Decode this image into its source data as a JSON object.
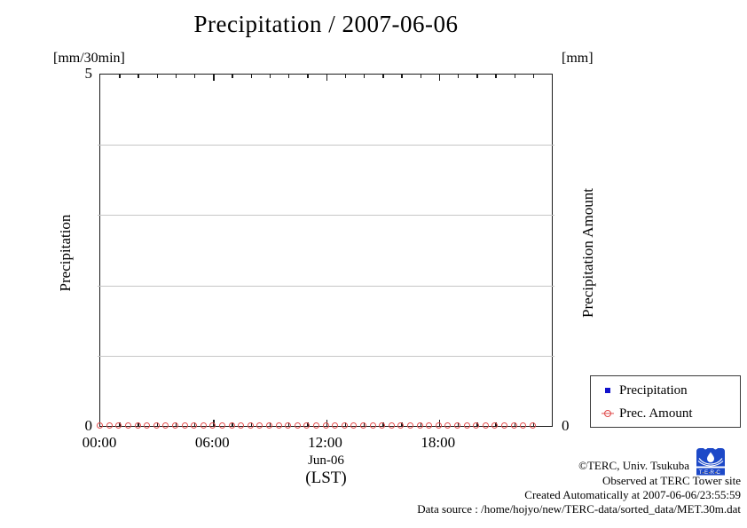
{
  "title": "Precipitation / 2007-06-06",
  "axes": {
    "left": {
      "unit": "[mm/30min]",
      "label": "Precipitation",
      "max": "5",
      "min": "0"
    },
    "right": {
      "unit": "[mm]",
      "label": "Precipitation Amount",
      "min": "0"
    },
    "x": {
      "ticks": [
        "00:00",
        "06:00",
        "12:00",
        "18:00"
      ],
      "date_label": "Jun-06",
      "tz_label": "(LST)"
    }
  },
  "legend": {
    "items": [
      {
        "label": "Precipitation",
        "marker": "blue-square",
        "color": "#1212cc"
      },
      {
        "label": "Prec. Amount",
        "marker": "red-circle-dash",
        "color": "#e04a4a"
      }
    ]
  },
  "footer": {
    "line1": "©TERC, Univ. Tsukuba",
    "line2": "Observed at TERC Tower site",
    "line3": "Created Automatically at 2007-06-06/23:55:59",
    "line4": "Data source : /home/hojyo/new/TERC-data/sorted_data/MET.30m.dat",
    "logo_text": "TERC",
    "logo_color": "#1d49c8"
  },
  "colors": {
    "axis": "#1a1a1a",
    "grid": "#c6c6c6",
    "precipitation": "#1212cc",
    "prec_amount": "#e04a4a"
  },
  "chart_data": {
    "type": "scatter",
    "title": "Precipitation / 2007-06-06",
    "xlabel": "Jun-06 (LST)",
    "ylabel_left": "Precipitation [mm/30min]",
    "ylabel_right": "Precipitation Amount [mm]",
    "ylim": [
      0,
      5
    ],
    "x_hours_range": [
      0,
      24
    ],
    "x_major_tick_hours": [
      0,
      6,
      12,
      18
    ],
    "x_minor_tick_hours": 1,
    "gridlines_y": [
      1,
      2,
      3,
      4
    ],
    "grid": "horizontal-only",
    "legend_position": "outside-bottom-right",
    "x": [
      "00:00",
      "00:30",
      "01:00",
      "01:30",
      "02:00",
      "02:30",
      "03:00",
      "03:30",
      "04:00",
      "04:30",
      "05:00",
      "05:30",
      "06:00",
      "06:30",
      "07:00",
      "07:30",
      "08:00",
      "08:30",
      "09:00",
      "09:30",
      "10:00",
      "10:30",
      "11:00",
      "11:30",
      "12:00",
      "12:30",
      "13:00",
      "13:30",
      "14:00",
      "14:30",
      "15:00",
      "15:30",
      "16:00",
      "16:30",
      "17:00",
      "17:30",
      "18:00",
      "18:30",
      "19:00",
      "19:30",
      "20:00",
      "20:30",
      "21:00",
      "21:30",
      "22:00",
      "22:30",
      "23:00"
    ],
    "series": [
      {
        "name": "Precipitation",
        "marker": "square",
        "color": "#1212cc",
        "visible_markers": false,
        "values": [
          0,
          0,
          0,
          0,
          0,
          0,
          0,
          0,
          0,
          0,
          0,
          0,
          0,
          0,
          0,
          0,
          0,
          0,
          0,
          0,
          0,
          0,
          0,
          0,
          0,
          0,
          0,
          0,
          0,
          0,
          0,
          0,
          0,
          0,
          0,
          0,
          0,
          0,
          0,
          0,
          0,
          0,
          0,
          0,
          0,
          0,
          0
        ]
      },
      {
        "name": "Prec. Amount",
        "marker": "circle",
        "color": "#e04a4a",
        "visible_markers": true,
        "values": [
          0,
          0,
          0,
          0,
          0,
          0,
          0,
          0,
          0,
          0,
          0,
          0,
          0,
          0,
          0,
          0,
          0,
          0,
          0,
          0,
          0,
          0,
          0,
          0,
          0,
          0,
          0,
          0,
          0,
          0,
          0,
          0,
          0,
          0,
          0,
          0,
          0,
          0,
          0,
          0,
          0,
          0,
          0,
          0,
          0,
          0,
          0
        ]
      }
    ]
  }
}
